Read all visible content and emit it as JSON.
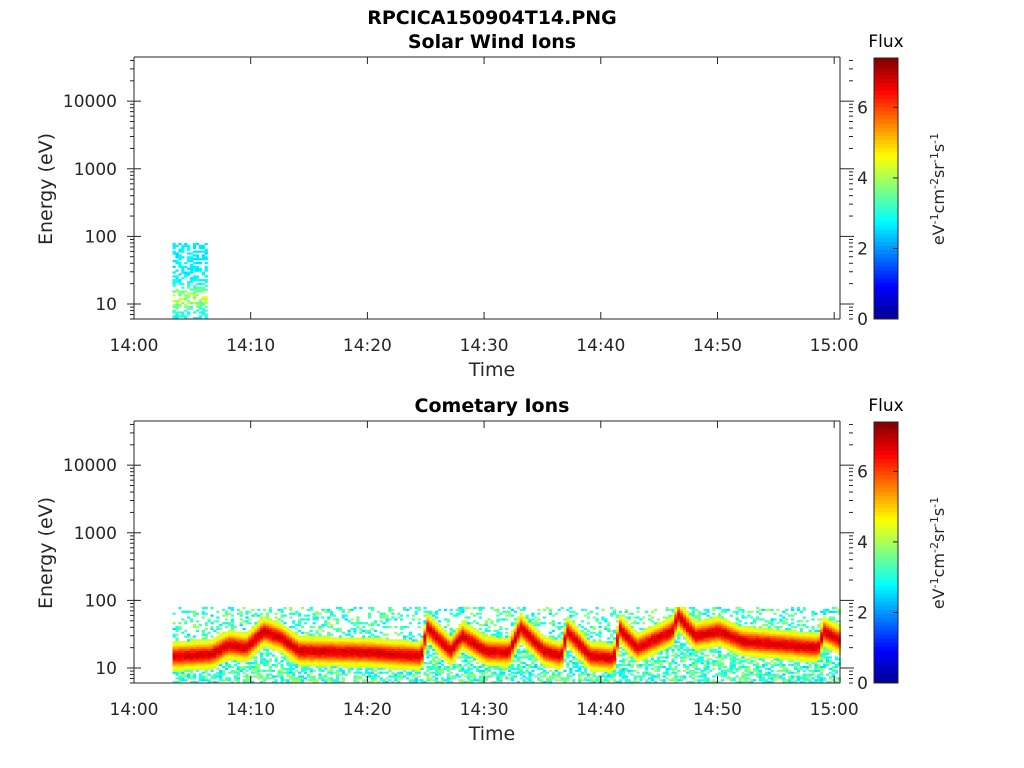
{
  "figure_title": "RPCICA150904T14.PNG",
  "colors": {
    "axis": "#262626",
    "colormap": [
      "#00008f",
      "#0000ff",
      "#0080ff",
      "#00ffff",
      "#80ff80",
      "#ffff00",
      "#ff8000",
      "#ff0000",
      "#800000"
    ]
  },
  "chart_data": [
    {
      "type": "heatmap",
      "title": "Solar Wind Ions",
      "xlabel": "Time",
      "ylabel": "Energy (eV)",
      "x_ticks": [
        "14:00",
        "14:10",
        "14:20",
        "14:30",
        "14:40",
        "14:50",
        "15:00"
      ],
      "x_range_minutes": [
        0,
        60.5
      ],
      "y_scale": "log",
      "y_ticks": [
        "10",
        "100",
        "1000",
        "10000"
      ],
      "y_range": [
        6,
        45000
      ],
      "colorbar": {
        "label": "Flux",
        "unit": "eV⁻¹cm⁻²sr⁻¹s⁻¹",
        "ticks": [
          "0",
          "2",
          "4",
          "6"
        ],
        "range": [
          0,
          7.4
        ]
      },
      "regions": [
        {
          "t_start": "14:03.3",
          "t_end": "14:06.3",
          "energy_eV": [
            6,
            80
          ],
          "flux_range": [
            2.5,
            4.5
          ],
          "peak_energy_eV": 12
        }
      ]
    },
    {
      "type": "heatmap",
      "title": "Cometary Ions",
      "xlabel": "Time",
      "ylabel": "Energy (eV)",
      "x_ticks": [
        "14:00",
        "14:10",
        "14:20",
        "14:30",
        "14:40",
        "14:50",
        "15:00"
      ],
      "x_range_minutes": [
        0,
        60.5
      ],
      "y_scale": "log",
      "y_ticks": [
        "10",
        "100",
        "1000",
        "10000"
      ],
      "y_range": [
        6,
        45000
      ],
      "colorbar": {
        "label": "Flux",
        "unit": "eV⁻¹cm⁻²sr⁻¹s⁻¹",
        "ticks": [
          "0",
          "2",
          "4",
          "6"
        ],
        "range": [
          0,
          7.4
        ]
      },
      "data_span": [
        "14:03.3",
        "15:00.5"
      ],
      "peak_energy_eV_by_time": [
        [
          "14:03.3",
          15
        ],
        [
          "14:06.5",
          16
        ],
        [
          "14:08",
          22
        ],
        [
          "14:09.5",
          20
        ],
        [
          "14:11",
          35
        ],
        [
          "14:12.5",
          28
        ],
        [
          "14:14",
          18
        ],
        [
          "14:20",
          17
        ],
        [
          "14:24.5",
          15
        ],
        [
          "14:25",
          40
        ],
        [
          "14:27",
          18
        ],
        [
          "14:28",
          30
        ],
        [
          "14:30",
          18
        ],
        [
          "14:32",
          17
        ],
        [
          "14:33",
          40
        ],
        [
          "14:35",
          18
        ],
        [
          "14:36.5",
          15
        ],
        [
          "14:37",
          35
        ],
        [
          "14:39",
          15
        ],
        [
          "14:41",
          14
        ],
        [
          "14:41.5",
          38
        ],
        [
          "14:43",
          20
        ],
        [
          "14:46",
          35
        ],
        [
          "14:46.5",
          60
        ],
        [
          "14:48",
          30
        ],
        [
          "14:50",
          35
        ],
        [
          "14:52",
          25
        ],
        [
          "14:58.5",
          20
        ],
        [
          "14:59",
          35
        ],
        [
          "15:00.5",
          25
        ]
      ],
      "peak_flux": 7.0,
      "background_flux_range": [
        2.5,
        4.0
      ],
      "background_energy_eV": [
        6,
        80
      ]
    }
  ]
}
